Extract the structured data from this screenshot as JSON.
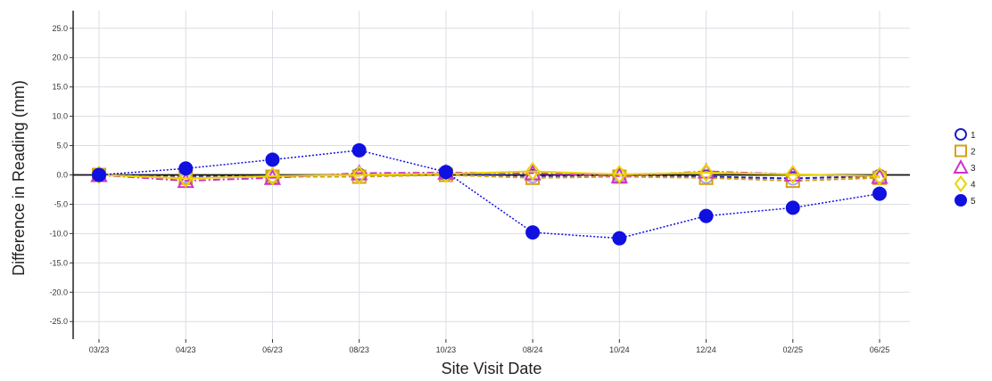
{
  "chart_data": {
    "type": "line",
    "title": "",
    "xlabel": "Site Visit Date",
    "ylabel": "Difference in Reading (mm)",
    "ylim": [
      -28,
      28
    ],
    "y_ticks": [
      25,
      20,
      15,
      10,
      5,
      0,
      -5,
      -10,
      -15,
      -20,
      -25
    ],
    "y_tick_labels": [
      "25.0",
      "20.0",
      "15.0",
      "10.0",
      "5.0",
      "0.0",
      "-5.0",
      "-10.0",
      "-15.0",
      "-20.0",
      "-25.0"
    ],
    "categories": [
      "03/23",
      "04/23",
      "06/23",
      "08/23",
      "10/23",
      "08/24",
      "10/24",
      "12/24",
      "02/25",
      "06/25"
    ],
    "grid": true,
    "legend_position": "right",
    "series": [
      {
        "name": "1",
        "color": "#1f1fbf",
        "marker": "circle-open",
        "line": "dashed",
        "values": [
          0,
          -0.3,
          -0.2,
          0,
          0.2,
          -0.2,
          -0.1,
          -0.3,
          -0.6,
          -0.2
        ]
      },
      {
        "name": "2",
        "color": "#d4a017",
        "marker": "square-open",
        "line": "dashed",
        "values": [
          0,
          -0.5,
          -0.3,
          -0.3,
          0,
          -0.5,
          -0.3,
          -0.5,
          -1.0,
          -0.5
        ]
      },
      {
        "name": "3",
        "color": "#cc33cc",
        "marker": "triangle-open",
        "line": "dashdot",
        "values": [
          0,
          -1.0,
          -0.5,
          0.3,
          0.4,
          0.3,
          -0.2,
          0.6,
          0.1,
          -0.3
        ]
      },
      {
        "name": "4",
        "color": "#e8d400",
        "marker": "diamond-open",
        "line": "solid",
        "values": [
          0,
          -0.6,
          -0.2,
          0,
          0.2,
          0.6,
          0.1,
          0.4,
          0.1,
          -0.2
        ]
      },
      {
        "name": "5",
        "color": "#1010e0",
        "marker": "circle-filled",
        "line": "dotted",
        "values": [
          0,
          1.1,
          2.6,
          4.2,
          0.5,
          -9.8,
          -10.8,
          -7.0,
          -5.6,
          -3.2
        ]
      }
    ]
  }
}
